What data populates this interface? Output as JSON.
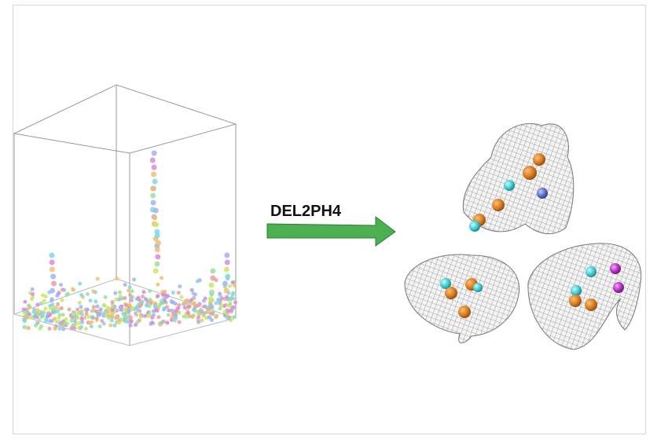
{
  "label": "DEL2PH4"
}
